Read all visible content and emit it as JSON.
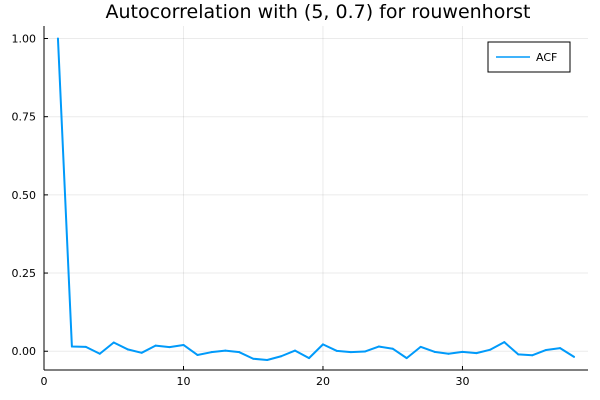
{
  "chart_data": {
    "type": "line",
    "title": "Autocorrelation with (5, 0.7) for rouwenhorst",
    "xlabel": "",
    "ylabel": "",
    "xlim": [
      0,
      39
    ],
    "ylim": [
      -0.06,
      1.04
    ],
    "xticks": [
      0,
      10,
      20,
      30
    ],
    "xtick_labels": [
      "0",
      "10",
      "20",
      "30"
    ],
    "yticks": [
      0,
      0.25,
      0.5,
      0.75,
      1.0
    ],
    "ytick_labels": [
      "0.00",
      "0.25",
      "0.50",
      "0.75",
      "1.00"
    ],
    "grid": true,
    "legend_position": "top-right",
    "series": [
      {
        "name": "ACF",
        "color": "#009AFA",
        "x": [
          1,
          2,
          3,
          4,
          5,
          6,
          7,
          8,
          9,
          10,
          11,
          12,
          13,
          14,
          15,
          16,
          17,
          18,
          19,
          20,
          21,
          22,
          23,
          24,
          25,
          26,
          27,
          28,
          29,
          30,
          31,
          32,
          33,
          34,
          35,
          36,
          37,
          38
        ],
        "values": [
          1.0,
          0.015,
          0.014,
          -0.008,
          0.028,
          0.006,
          -0.005,
          0.018,
          0.013,
          0.02,
          -0.012,
          -0.003,
          0.002,
          -0.003,
          -0.024,
          -0.028,
          -0.016,
          0.002,
          -0.022,
          0.022,
          0.001,
          -0.003,
          -0.001,
          0.015,
          0.008,
          -0.022,
          0.014,
          -0.002,
          -0.008,
          -0.002,
          -0.006,
          0.005,
          0.029,
          -0.01,
          -0.013,
          0.004,
          0.01,
          -0.018
        ]
      }
    ]
  }
}
